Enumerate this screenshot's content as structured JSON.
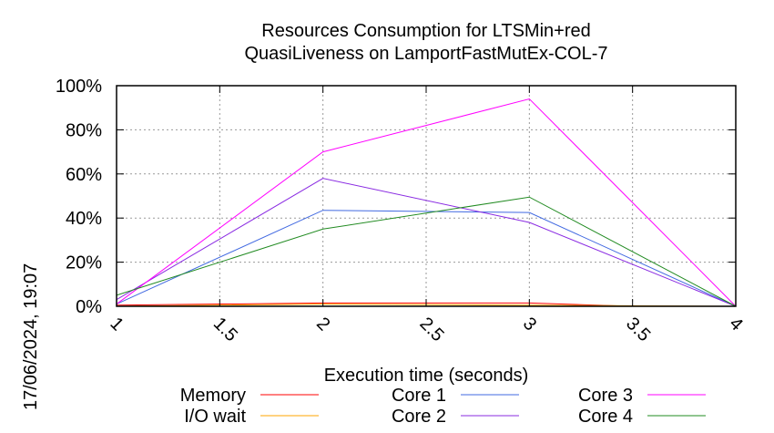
{
  "chart_data": {
    "type": "line",
    "title": [
      "Resources Consumption for LTSMin+red",
      "QuasiLiveness on LamportFastMutEx-COL-7"
    ],
    "xlabel": "Execution time (seconds)",
    "ylabel": "",
    "side_label": "17/06/2024, 19:07",
    "xlim": [
      1,
      4
    ],
    "ylim": [
      0,
      100
    ],
    "xticks": [
      {
        "v": 1,
        "label": "1"
      },
      {
        "v": 1.5,
        "label": "1.5"
      },
      {
        "v": 2,
        "label": "2"
      },
      {
        "v": 2.5,
        "label": "2.5"
      },
      {
        "v": 3,
        "label": "3"
      },
      {
        "v": 3.5,
        "label": "3.5"
      },
      {
        "v": 4,
        "label": "4"
      }
    ],
    "yticks": [
      {
        "v": 0,
        "label": "0%"
      },
      {
        "v": 20,
        "label": "20%"
      },
      {
        "v": 40,
        "label": "40%"
      },
      {
        "v": 60,
        "label": "60%"
      },
      {
        "v": 80,
        "label": "80%"
      },
      {
        "v": 100,
        "label": "100%"
      }
    ],
    "grid": true,
    "legend": "bottom",
    "series": [
      {
        "name": "Memory",
        "color": "#ff0000",
        "x": [
          1,
          2,
          3,
          3.5,
          4
        ],
        "y": [
          0.5,
          1.5,
          1.5,
          0,
          0
        ]
      },
      {
        "name": "I/O wait",
        "color": "#ffa500",
        "x": [
          1,
          2,
          3,
          4
        ],
        "y": [
          0,
          1,
          0.5,
          0
        ]
      },
      {
        "name": "Core 1",
        "color": "#4169e1",
        "x": [
          1,
          2,
          3,
          4
        ],
        "y": [
          1,
          43.5,
          42.5,
          0
        ]
      },
      {
        "name": "Core 2",
        "color": "#8a2be2",
        "x": [
          1,
          2,
          3,
          4
        ],
        "y": [
          3,
          58,
          38,
          0
        ]
      },
      {
        "name": "Core 3",
        "color": "#ff00ff",
        "x": [
          1,
          2,
          3,
          4
        ],
        "y": [
          1,
          70,
          94,
          0
        ]
      },
      {
        "name": "Core 4",
        "color": "#228b22",
        "x": [
          1,
          2,
          3,
          4
        ],
        "y": [
          5,
          35,
          49.5,
          0
        ]
      }
    ]
  }
}
